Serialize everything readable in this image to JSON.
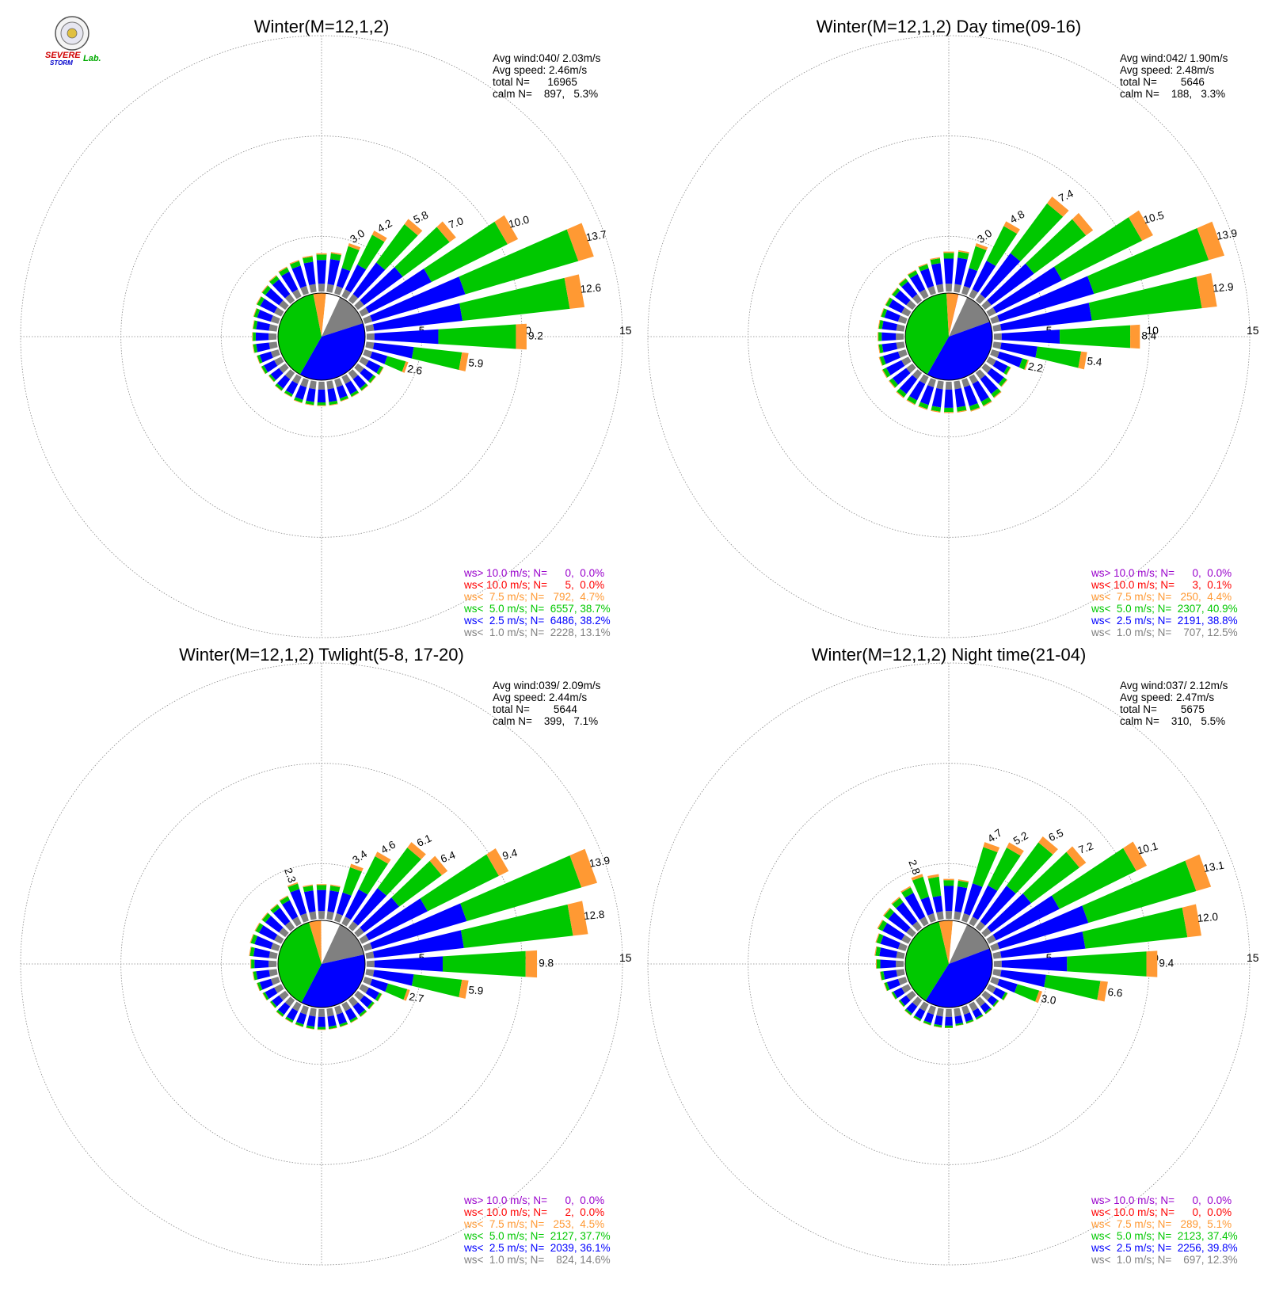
{
  "logo": {
    "text_severe": "SEVERE",
    "text_storm": "STORM",
    "text_lab": "Lab."
  },
  "colors": {
    "gray": "#808080",
    "blue": "#0000ff",
    "green": "#00c800",
    "orange": "#ff9933",
    "red": "#ff0000",
    "purple": "#9900cc",
    "grid": "#888888"
  },
  "chart_data": [
    {
      "type": "polar-bar",
      "title": "Winter(M=12,1,2)",
      "stats": {
        "avg_wind": "Avg wind:040/ 2.03m/s",
        "avg_speed": "Avg speed: 2.46m/s",
        "total_n": "total N=      16965",
        "calm_n": "calm N=    897,   5.3%"
      },
      "rings": [
        "5",
        "10",
        "15"
      ],
      "rmax": 15,
      "pie": [
        {
          "cat": "gray",
          "pct": 13.1
        },
        {
          "cat": "blue",
          "pct": 38.2
        },
        {
          "cat": "green",
          "pct": 38.7
        },
        {
          "cat": "orange",
          "pct": 4.7
        },
        {
          "cat": "red",
          "pct": 0.0
        },
        {
          "cat": "purple",
          "pct": 0.0
        },
        {
          "cat": "calm",
          "pct": 5.3
        }
      ],
      "directions": [
        {
          "dir": 0,
          "total": 2.2
        },
        {
          "dir": 10,
          "total": 2.3
        },
        {
          "dir": 20,
          "total": 3.0
        },
        {
          "dir": 30,
          "total": 4.2
        },
        {
          "dir": 40,
          "total": 5.8
        },
        {
          "dir": 50,
          "total": 7.0
        },
        {
          "dir": 60,
          "total": 10.0
        },
        {
          "dir": 70,
          "total": 13.7
        },
        {
          "dir": 80,
          "total": 12.6
        },
        {
          "dir": 90,
          "total": 9.2
        },
        {
          "dir": 100,
          "total": 5.9
        },
        {
          "dir": 110,
          "total": 2.6
        },
        {
          "dir": 120,
          "total": 1.4
        },
        {
          "dir": 130,
          "total": 1.3
        },
        {
          "dir": 140,
          "total": 1.3
        },
        {
          "dir": 150,
          "total": 1.3
        },
        {
          "dir": 160,
          "total": 1.3
        },
        {
          "dir": 170,
          "total": 1.4
        },
        {
          "dir": 180,
          "total": 1.4
        },
        {
          "dir": 190,
          "total": 1.4
        },
        {
          "dir": 200,
          "total": 1.4
        },
        {
          "dir": 210,
          "total": 1.3
        },
        {
          "dir": 220,
          "total": 1.3
        },
        {
          "dir": 230,
          "total": 1.2
        },
        {
          "dir": 240,
          "total": 1.3
        },
        {
          "dir": 250,
          "total": 1.3
        },
        {
          "dir": 260,
          "total": 1.4
        },
        {
          "dir": 270,
          "total": 1.4
        },
        {
          "dir": 280,
          "total": 1.4
        },
        {
          "dir": 290,
          "total": 1.5
        },
        {
          "dir": 300,
          "total": 1.6
        },
        {
          "dir": 310,
          "total": 1.7
        },
        {
          "dir": 320,
          "total": 1.8
        },
        {
          "dir": 330,
          "total": 1.9
        },
        {
          "dir": 340,
          "total": 2.0
        },
        {
          "dir": 350,
          "total": 2.1
        }
      ],
      "labels": [
        {
          "dir": 20,
          "text": "3.0"
        },
        {
          "dir": 30,
          "text": "4.2"
        },
        {
          "dir": 40,
          "text": "5.8"
        },
        {
          "dir": 50,
          "text": "7.0"
        },
        {
          "dir": 60,
          "text": "10.0"
        },
        {
          "dir": 70,
          "text": "13.7"
        },
        {
          "dir": 80,
          "text": "12.6"
        },
        {
          "dir": 90,
          "text": "9.2"
        },
        {
          "dir": 100,
          "text": "5.9"
        },
        {
          "dir": 110,
          "text": "2.6"
        }
      ],
      "legend": [
        {
          "cat": "purple",
          "text": "ws> 10.0 m/s; N=      0,  0.0%"
        },
        {
          "cat": "red",
          "text": "ws< 10.0 m/s; N=      5,  0.0%"
        },
        {
          "cat": "orange",
          "text": "ws<  7.5 m/s; N=   792,  4.7%"
        },
        {
          "cat": "green",
          "text": "ws<  5.0 m/s; N=  6557, 38.7%"
        },
        {
          "cat": "blue",
          "text": "ws<  2.5 m/s; N=  6486, 38.2%"
        },
        {
          "cat": "gray",
          "text": "ws<  1.0 m/s; N=  2228, 13.1%"
        }
      ]
    },
    {
      "type": "polar-bar",
      "title": "Winter(M=12,1,2) Day time(09-16)",
      "stats": {
        "avg_wind": "Avg wind:042/ 1.90m/s",
        "avg_speed": "Avg speed: 2.48m/s",
        "total_n": "total N=        5646",
        "calm_n": "calm N=    188,   3.3%"
      },
      "rings": [
        "5",
        "10",
        "15"
      ],
      "rmax": 15,
      "pie": [
        {
          "cat": "gray",
          "pct": 12.5
        },
        {
          "cat": "blue",
          "pct": 38.8
        },
        {
          "cat": "green",
          "pct": 40.9
        },
        {
          "cat": "orange",
          "pct": 4.4
        },
        {
          "cat": "red",
          "pct": 0.1
        },
        {
          "cat": "purple",
          "pct": 0.0
        },
        {
          "cat": "calm",
          "pct": 3.3
        }
      ],
      "directions": [
        {
          "dir": 0,
          "total": 2.3
        },
        {
          "dir": 10,
          "total": 2.4
        },
        {
          "dir": 20,
          "total": 3.0
        },
        {
          "dir": 30,
          "total": 4.8
        },
        {
          "dir": 40,
          "total": 7.4
        },
        {
          "dir": 50,
          "total": 7.7
        },
        {
          "dir": 60,
          "total": 10.5
        },
        {
          "dir": 70,
          "total": 13.9
        },
        {
          "dir": 80,
          "total": 12.9
        },
        {
          "dir": 90,
          "total": 8.4
        },
        {
          "dir": 100,
          "total": 5.4
        },
        {
          "dir": 110,
          "total": 2.2
        },
        {
          "dir": 120,
          "total": 1.4
        },
        {
          "dir": 130,
          "total": 1.6
        },
        {
          "dir": 140,
          "total": 1.8
        },
        {
          "dir": 150,
          "total": 1.9
        },
        {
          "dir": 160,
          "total": 1.9
        },
        {
          "dir": 170,
          "total": 1.8
        },
        {
          "dir": 180,
          "total": 1.8
        },
        {
          "dir": 190,
          "total": 1.8
        },
        {
          "dir": 200,
          "total": 1.8
        },
        {
          "dir": 210,
          "total": 1.8
        },
        {
          "dir": 220,
          "total": 1.8
        },
        {
          "dir": 230,
          "total": 1.7
        },
        {
          "dir": 240,
          "total": 1.7
        },
        {
          "dir": 250,
          "total": 1.6
        },
        {
          "dir": 260,
          "total": 1.5
        },
        {
          "dir": 270,
          "total": 1.5
        },
        {
          "dir": 280,
          "total": 1.5
        },
        {
          "dir": 290,
          "total": 1.5
        },
        {
          "dir": 300,
          "total": 1.5
        },
        {
          "dir": 310,
          "total": 1.5
        },
        {
          "dir": 320,
          "total": 1.6
        },
        {
          "dir": 330,
          "total": 1.7
        },
        {
          "dir": 340,
          "total": 1.8
        },
        {
          "dir": 350,
          "total": 2.0
        }
      ],
      "labels": [
        {
          "dir": 20,
          "text": "3.0"
        },
        {
          "dir": 30,
          "text": "4.8"
        },
        {
          "dir": 40,
          "text": "7.4"
        },
        {
          "dir": 60,
          "text": "10.5"
        },
        {
          "dir": 70,
          "text": "13.9"
        },
        {
          "dir": 80,
          "text": "12.9"
        },
        {
          "dir": 90,
          "text": "8.4"
        },
        {
          "dir": 100,
          "text": "5.4"
        },
        {
          "dir": 110,
          "text": "2.2"
        }
      ],
      "legend": [
        {
          "cat": "purple",
          "text": "ws> 10.0 m/s; N=      0,  0.0%"
        },
        {
          "cat": "red",
          "text": "ws< 10.0 m/s; N=      3,  0.1%"
        },
        {
          "cat": "orange",
          "text": "ws<  7.5 m/s; N=   250,  4.4%"
        },
        {
          "cat": "green",
          "text": "ws<  5.0 m/s; N=  2307, 40.9%"
        },
        {
          "cat": "blue",
          "text": "ws<  2.5 m/s; N=  2191, 38.8%"
        },
        {
          "cat": "gray",
          "text": "ws<  1.0 m/s; N=    707, 12.5%"
        }
      ]
    },
    {
      "type": "polar-bar",
      "title": "Winter(M=12,1,2) Twlight(5-8, 17-20)",
      "stats": {
        "avg_wind": "Avg wind:039/ 2.09m/s",
        "avg_speed": "Avg speed: 2.44m/s",
        "total_n": "total N=        5644",
        "calm_n": "calm N=    399,   7.1%"
      },
      "rings": [
        "5",
        "10",
        "15"
      ],
      "rmax": 15,
      "pie": [
        {
          "cat": "gray",
          "pct": 14.6
        },
        {
          "cat": "blue",
          "pct": 36.1
        },
        {
          "cat": "green",
          "pct": 37.7
        },
        {
          "cat": "orange",
          "pct": 4.5
        },
        {
          "cat": "red",
          "pct": 0.0
        },
        {
          "cat": "purple",
          "pct": 0.0
        },
        {
          "cat": "calm",
          "pct": 7.1
        }
      ],
      "directions": [
        {
          "dir": 0,
          "total": 2.0
        },
        {
          "dir": 10,
          "total": 2.0
        },
        {
          "dir": 20,
          "total": 3.4
        },
        {
          "dir": 30,
          "total": 4.6
        },
        {
          "dir": 40,
          "total": 6.1
        },
        {
          "dir": 50,
          "total": 6.4
        },
        {
          "dir": 60,
          "total": 9.4
        },
        {
          "dir": 70,
          "total": 13.9
        },
        {
          "dir": 80,
          "total": 12.8
        },
        {
          "dir": 90,
          "total": 9.8
        },
        {
          "dir": 100,
          "total": 5.9
        },
        {
          "dir": 110,
          "total": 2.7
        },
        {
          "dir": 120,
          "total": 1.3
        },
        {
          "dir": 130,
          "total": 1.2
        },
        {
          "dir": 140,
          "total": 1.2
        },
        {
          "dir": 150,
          "total": 1.2
        },
        {
          "dir": 160,
          "total": 1.2
        },
        {
          "dir": 170,
          "total": 1.2
        },
        {
          "dir": 180,
          "total": 1.2
        },
        {
          "dir": 190,
          "total": 1.2
        },
        {
          "dir": 200,
          "total": 1.2
        },
        {
          "dir": 210,
          "total": 1.2
        },
        {
          "dir": 220,
          "total": 1.2
        },
        {
          "dir": 230,
          "total": 1.1
        },
        {
          "dir": 240,
          "total": 1.2
        },
        {
          "dir": 250,
          "total": 1.3
        },
        {
          "dir": 260,
          "total": 1.4
        },
        {
          "dir": 270,
          "total": 1.5
        },
        {
          "dir": 280,
          "total": 1.6
        },
        {
          "dir": 290,
          "total": 1.7
        },
        {
          "dir": 300,
          "total": 1.7
        },
        {
          "dir": 310,
          "total": 1.7
        },
        {
          "dir": 320,
          "total": 1.7
        },
        {
          "dir": 330,
          "total": 1.8
        },
        {
          "dir": 340,
          "total": 2.3
        },
        {
          "dir": 350,
          "total": 2.0
        }
      ],
      "labels": [
        {
          "dir": 340,
          "text": "2.3"
        },
        {
          "dir": 20,
          "text": "3.4"
        },
        {
          "dir": 30,
          "text": "4.6"
        },
        {
          "dir": 40,
          "text": "6.1"
        },
        {
          "dir": 50,
          "text": "6.4"
        },
        {
          "dir": 60,
          "text": "9.4"
        },
        {
          "dir": 70,
          "text": "13.9"
        },
        {
          "dir": 80,
          "text": "12.8"
        },
        {
          "dir": 90,
          "text": "9.8"
        },
        {
          "dir": 100,
          "text": "5.9"
        },
        {
          "dir": 110,
          "text": "2.7"
        }
      ],
      "legend": [
        {
          "cat": "purple",
          "text": "ws> 10.0 m/s; N=      0,  0.0%"
        },
        {
          "cat": "red",
          "text": "ws< 10.0 m/s; N=      2,  0.0%"
        },
        {
          "cat": "orange",
          "text": "ws<  7.5 m/s; N=   253,  4.5%"
        },
        {
          "cat": "green",
          "text": "ws<  5.0 m/s; N=  2127, 37.7%"
        },
        {
          "cat": "blue",
          "text": "ws<  2.5 m/s; N=  2039, 36.1%"
        },
        {
          "cat": "gray",
          "text": "ws<  1.0 m/s; N=    824, 14.6%"
        }
      ]
    },
    {
      "type": "polar-bar",
      "title": "Winter(M=12,1,2) Night time(21-04)",
      "stats": {
        "avg_wind": "Avg wind:037/ 2.12m/s",
        "avg_speed": "Avg speed: 2.47m/s",
        "total_n": "total N=        5675",
        "calm_n": "calm N=    310,   5.5%"
      },
      "rings": [
        "5",
        "10",
        "15"
      ],
      "rmax": 15,
      "pie": [
        {
          "cat": "gray",
          "pct": 12.3
        },
        {
          "cat": "blue",
          "pct": 39.8
        },
        {
          "cat": "green",
          "pct": 37.4
        },
        {
          "cat": "orange",
          "pct": 5.1
        },
        {
          "cat": "red",
          "pct": 0.0
        },
        {
          "cat": "purple",
          "pct": 0.0
        },
        {
          "cat": "calm",
          "pct": 5.5
        }
      ],
      "directions": [
        {
          "dir": 0,
          "total": 2.3
        },
        {
          "dir": 10,
          "total": 2.3
        },
        {
          "dir": 20,
          "total": 4.7
        },
        {
          "dir": 30,
          "total": 5.2
        },
        {
          "dir": 40,
          "total": 6.5
        },
        {
          "dir": 50,
          "total": 7.2
        },
        {
          "dir": 60,
          "total": 10.1
        },
        {
          "dir": 70,
          "total": 13.1
        },
        {
          "dir": 80,
          "total": 12.0
        },
        {
          "dir": 90,
          "total": 9.4
        },
        {
          "dir": 100,
          "total": 6.6
        },
        {
          "dir": 110,
          "total": 3.0
        },
        {
          "dir": 120,
          "total": 1.2
        },
        {
          "dir": 130,
          "total": 1.0
        },
        {
          "dir": 140,
          "total": 1.0
        },
        {
          "dir": 150,
          "total": 1.0
        },
        {
          "dir": 160,
          "total": 1.0
        },
        {
          "dir": 170,
          "total": 1.0
        },
        {
          "dir": 180,
          "total": 1.1
        },
        {
          "dir": 190,
          "total": 1.1
        },
        {
          "dir": 200,
          "total": 1.1
        },
        {
          "dir": 210,
          "total": 1.1
        },
        {
          "dir": 220,
          "total": 1.1
        },
        {
          "dir": 230,
          "total": 1.0
        },
        {
          "dir": 240,
          "total": 1.1
        },
        {
          "dir": 250,
          "total": 1.3
        },
        {
          "dir": 260,
          "total": 1.4
        },
        {
          "dir": 270,
          "total": 1.6
        },
        {
          "dir": 280,
          "total": 1.7
        },
        {
          "dir": 290,
          "total": 1.8
        },
        {
          "dir": 300,
          "total": 2.0
        },
        {
          "dir": 310,
          "total": 2.1
        },
        {
          "dir": 320,
          "total": 2.2
        },
        {
          "dir": 330,
          "total": 2.4
        },
        {
          "dir": 340,
          "total": 2.8
        },
        {
          "dir": 350,
          "total": 2.6
        }
      ],
      "labels": [
        {
          "dir": 340,
          "text": "2.8"
        },
        {
          "dir": 20,
          "text": "4.7"
        },
        {
          "dir": 30,
          "text": "5.2"
        },
        {
          "dir": 40,
          "text": "6.5"
        },
        {
          "dir": 50,
          "text": "7.2"
        },
        {
          "dir": 60,
          "text": "10.1"
        },
        {
          "dir": 70,
          "text": "13.1"
        },
        {
          "dir": 80,
          "text": "12.0"
        },
        {
          "dir": 90,
          "text": "9.4"
        },
        {
          "dir": 100,
          "text": "6.6"
        },
        {
          "dir": 110,
          "text": "3.0"
        }
      ],
      "legend": [
        {
          "cat": "purple",
          "text": "ws> 10.0 m/s; N=      0,  0.0%"
        },
        {
          "cat": "red",
          "text": "ws< 10.0 m/s; N=      0,  0.0%"
        },
        {
          "cat": "orange",
          "text": "ws<  7.5 m/s; N=   289,  5.1%"
        },
        {
          "cat": "green",
          "text": "ws<  5.0 m/s; N=  2123, 37.4%"
        },
        {
          "cat": "blue",
          "text": "ws<  2.5 m/s; N=  2256, 39.8%"
        },
        {
          "cat": "gray",
          "text": "ws<  1.0 m/s; N=    697, 12.3%"
        }
      ]
    }
  ]
}
